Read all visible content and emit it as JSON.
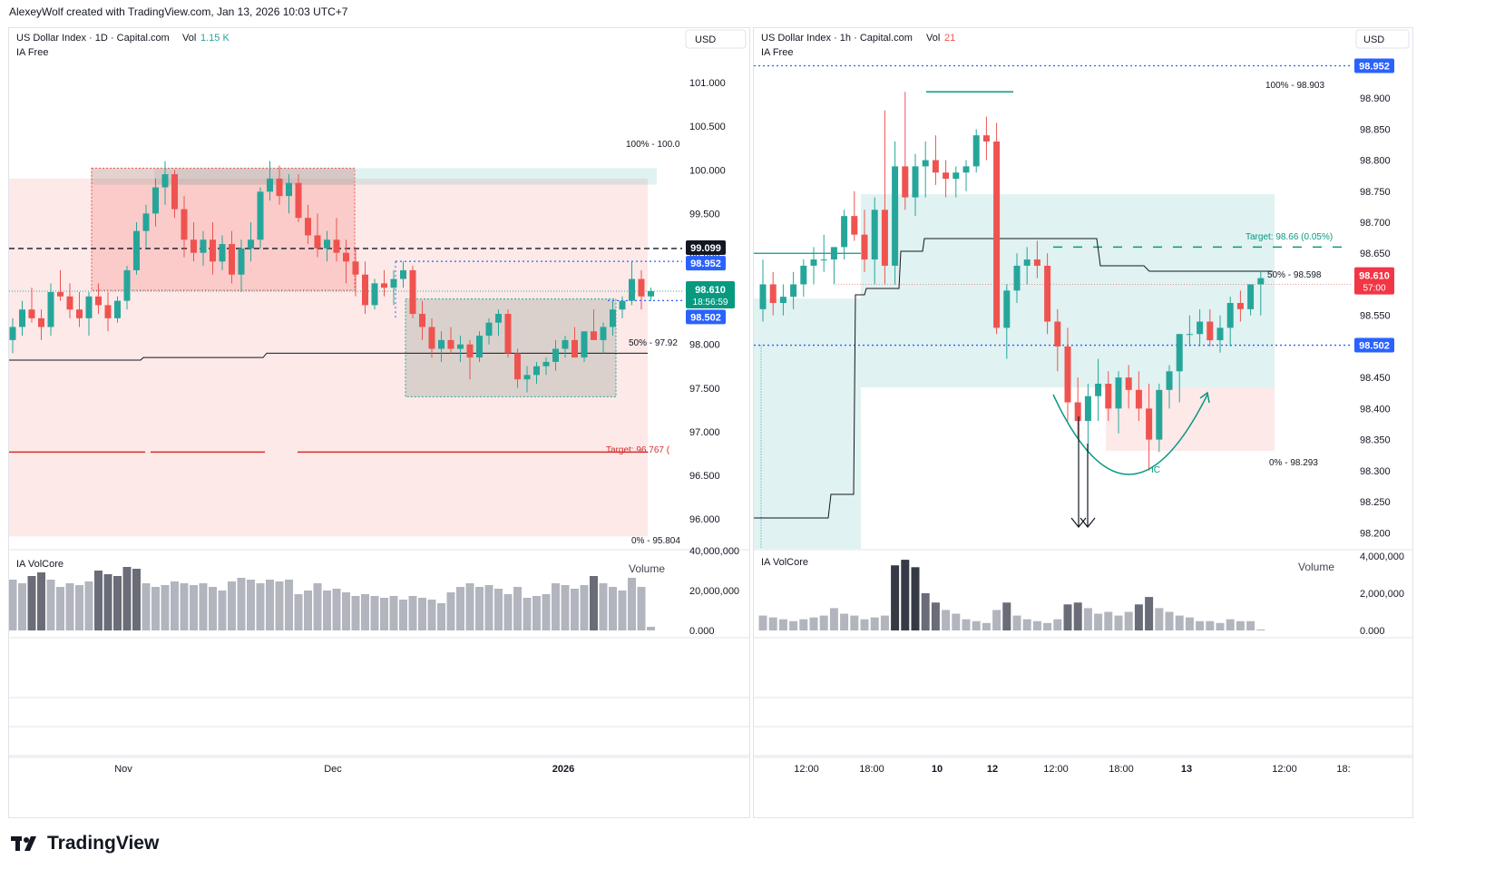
{
  "header": {
    "text": "AlexeyWolf created with TradingView.com, Jan 13, 2026 10:03 UTC+7"
  },
  "footer": {
    "brand": "TradingView"
  },
  "colors": {
    "up": "#26a69a",
    "down": "#ef5350",
    "blue": "#2962ff",
    "zone_red": "#ef5350",
    "zone_green": "#26a69a",
    "volume": "#b2b5be",
    "volume_dark": "#363a45"
  },
  "left": {
    "symbol": "US Dollar Index · 1D · Capital.com",
    "vol_label": "Vol",
    "vol_value": "1.15 K",
    "indicator": "IA Free",
    "currency": "USD",
    "volcore_label": "IA VolCore",
    "volume_label": "Volume",
    "fib_top": "100% - 100.0",
    "fib_mid": "50% - 97.92",
    "fib_bottom": "0% - 95.804",
    "target_label": "Target: 96.767 (",
    "price_tags": {
      "black": "99.099",
      "blue_upper": "98.952",
      "last": "98.610",
      "countdown": "18:56:59",
      "blue_lower": "98.502"
    },
    "y_ticks": [
      "101.000",
      "100.500",
      "100.000",
      "99.500",
      "99.000",
      "98.500",
      "98.000",
      "97.500",
      "97.000",
      "96.500",
      "96.000"
    ],
    "vol_ticks": [
      "40,000,000",
      "20,000,000",
      "0.000"
    ],
    "x_ticks": [
      "Nov",
      "Dec",
      "2026"
    ]
  },
  "right": {
    "symbol": "US Dollar Index · 1h · Capital.com",
    "vol_label": "Vol",
    "vol_value": "21",
    "indicator": "IA Free",
    "currency": "USD",
    "volcore_label": "IA VolCore",
    "volume_label": "Volume",
    "fib_top": "100% - 98.903",
    "fib_mid": "50% - 98.598",
    "fib_bottom": "0% - 98.293",
    "target_label": "Target: 98.66 (0.05%)",
    "ic_label": "IC",
    "price_tags": {
      "blue_top": "98.952",
      "last": "98.610",
      "countdown": "57:00",
      "blue_lower": "98.502"
    },
    "y_ticks": [
      "98.900",
      "98.850",
      "98.800",
      "98.750",
      "98.700",
      "98.650",
      "98.600",
      "98.550",
      "98.500",
      "98.450",
      "98.400",
      "98.350",
      "98.300",
      "98.250",
      "98.200"
    ],
    "vol_ticks": [
      "4,000,000",
      "2,000,000",
      "0.000"
    ],
    "x_ticks": [
      "12:00",
      "18:00",
      "10",
      "12",
      "12:00",
      "18:00",
      "13",
      "12:00",
      "18:"
    ]
  },
  "chart_data": [
    {
      "type": "candlestick",
      "title": "US Dollar Index · 1D · Capital.com",
      "ylim": [
        95.7,
        101.25
      ],
      "levels": {
        "fib_100": 100.0,
        "fib_50": 97.92,
        "fib_0": 95.804,
        "target": 96.767,
        "dashed_black": 99.099,
        "blue_dotted_upper": 98.952,
        "blue_dotted_lower": 98.502,
        "last": 98.61
      },
      "ohlc": [
        [
          98.05,
          98.3,
          97.9,
          98.2
        ],
        [
          98.2,
          98.5,
          98.1,
          98.4
        ],
        [
          98.4,
          98.65,
          98.25,
          98.3
        ],
        [
          98.3,
          98.4,
          98.05,
          98.2
        ],
        [
          98.2,
          98.7,
          98.1,
          98.6
        ],
        [
          98.6,
          98.85,
          98.5,
          98.55
        ],
        [
          98.55,
          98.7,
          98.3,
          98.4
        ],
        [
          98.4,
          98.6,
          98.2,
          98.3
        ],
        [
          98.3,
          98.6,
          98.1,
          98.55
        ],
        [
          98.55,
          98.7,
          98.35,
          98.45
        ],
        [
          98.45,
          98.6,
          98.15,
          98.3
        ],
        [
          98.3,
          98.55,
          98.25,
          98.5
        ],
        [
          98.5,
          98.9,
          98.4,
          98.85
        ],
        [
          98.85,
          99.4,
          98.8,
          99.3
        ],
        [
          99.3,
          99.6,
          99.1,
          99.5
        ],
        [
          99.5,
          99.9,
          99.35,
          99.8
        ],
        [
          99.8,
          100.1,
          99.6,
          99.95
        ],
        [
          99.95,
          100.0,
          99.45,
          99.55
        ],
        [
          99.55,
          99.7,
          99.0,
          99.2
        ],
        [
          99.2,
          99.4,
          98.95,
          99.05
        ],
        [
          99.05,
          99.3,
          98.9,
          99.2
        ],
        [
          99.2,
          99.4,
          98.8,
          98.95
        ],
        [
          98.95,
          99.25,
          98.85,
          99.15
        ],
        [
          99.15,
          99.3,
          98.7,
          98.8
        ],
        [
          98.8,
          99.2,
          98.6,
          99.1
        ],
        [
          99.1,
          99.4,
          98.95,
          99.2
        ],
        [
          99.2,
          99.8,
          99.1,
          99.75
        ],
        [
          99.75,
          100.1,
          99.65,
          99.9
        ],
        [
          99.9,
          100.05,
          99.6,
          99.7
        ],
        [
          99.7,
          99.95,
          99.5,
          99.85
        ],
        [
          99.85,
          99.95,
          99.4,
          99.45
        ],
        [
          99.45,
          99.6,
          99.15,
          99.25
        ],
        [
          99.25,
          99.5,
          99.0,
          99.1
        ],
        [
          99.1,
          99.3,
          98.95,
          99.2
        ],
        [
          99.2,
          99.45,
          98.95,
          99.05
        ],
        [
          99.05,
          99.2,
          98.7,
          98.95
        ],
        [
          98.95,
          99.1,
          98.55,
          98.8
        ],
        [
          98.8,
          98.95,
          98.35,
          98.45
        ],
        [
          98.45,
          98.75,
          98.4,
          98.7
        ],
        [
          98.7,
          98.85,
          98.55,
          98.65
        ],
        [
          98.65,
          98.85,
          98.45,
          98.75
        ],
        [
          98.75,
          98.95,
          98.65,
          98.85
        ],
        [
          98.85,
          98.9,
          98.3,
          98.35
        ],
        [
          98.35,
          98.5,
          98.05,
          98.2
        ],
        [
          98.2,
          98.3,
          97.85,
          97.95
        ],
        [
          97.95,
          98.15,
          97.8,
          98.05
        ],
        [
          98.05,
          98.2,
          97.9,
          97.95
        ],
        [
          97.95,
          98.1,
          97.8,
          98.0
        ],
        [
          98.0,
          98.05,
          97.6,
          97.85
        ],
        [
          97.85,
          98.15,
          97.8,
          98.1
        ],
        [
          98.1,
          98.3,
          98.0,
          98.25
        ],
        [
          98.25,
          98.4,
          98.1,
          98.35
        ],
        [
          98.35,
          98.4,
          97.85,
          97.9
        ],
        [
          97.9,
          97.95,
          97.5,
          97.6
        ],
        [
          97.6,
          97.75,
          97.45,
          97.65
        ],
        [
          97.65,
          97.8,
          97.55,
          97.75
        ],
        [
          97.75,
          97.85,
          97.65,
          97.8
        ],
        [
          97.8,
          98.05,
          97.7,
          97.95
        ],
        [
          97.95,
          98.1,
          97.85,
          98.05
        ],
        [
          98.05,
          98.2,
          97.9,
          97.85
        ],
        [
          97.85,
          98.15,
          97.8,
          98.15
        ],
        [
          98.15,
          98.4,
          98.05,
          98.05
        ],
        [
          98.05,
          98.25,
          97.9,
          98.2
        ],
        [
          98.2,
          98.5,
          98.1,
          98.4
        ],
        [
          98.4,
          98.55,
          98.3,
          98.5
        ],
        [
          98.5,
          98.95,
          98.45,
          98.75
        ],
        [
          98.75,
          98.85,
          98.4,
          98.55
        ],
        [
          98.55,
          98.65,
          98.5,
          98.61
        ]
      ],
      "volume_millions": [
        28,
        26,
        30,
        32,
        28,
        24,
        26,
        25,
        27,
        33,
        31,
        30,
        35,
        34,
        26,
        24,
        25,
        27,
        26,
        25,
        26,
        24,
        22,
        27,
        29,
        28,
        26,
        28,
        27,
        28,
        20,
        22,
        26,
        22,
        23,
        21,
        19,
        20,
        19,
        18,
        19,
        17,
        19,
        18,
        17,
        15,
        21,
        24,
        26,
        24,
        25,
        23,
        20,
        24,
        18,
        19,
        20,
        26,
        25,
        23,
        25,
        30,
        26,
        24,
        22,
        29,
        24,
        2
      ]
    },
    {
      "type": "candlestick",
      "title": "US Dollar Index · 1h · Capital.com",
      "ylim": [
        98.18,
        98.96
      ],
      "levels": {
        "fib_100": 98.903,
        "fib_50": 98.598,
        "fib_0": 98.293,
        "target": 98.66,
        "blue_dotted_top": 98.952,
        "blue_dotted_lower": 98.502,
        "last": 98.61
      },
      "ohlc": [
        [
          98.56,
          98.64,
          98.54,
          98.6
        ],
        [
          98.6,
          98.62,
          98.55,
          98.57
        ],
        [
          98.57,
          98.6,
          98.55,
          98.58
        ],
        [
          98.58,
          98.62,
          98.56,
          98.6
        ],
        [
          98.6,
          98.64,
          98.58,
          98.63
        ],
        [
          98.63,
          98.66,
          98.6,
          98.64
        ],
        [
          98.64,
          98.68,
          98.62,
          98.64
        ],
        [
          98.64,
          98.66,
          98.6,
          98.66
        ],
        [
          98.66,
          98.72,
          98.64,
          98.71
        ],
        [
          98.71,
          98.75,
          98.67,
          98.68
        ],
        [
          98.68,
          98.72,
          98.62,
          98.64
        ],
        [
          98.64,
          98.74,
          98.6,
          98.72
        ],
        [
          98.72,
          98.88,
          98.6,
          98.63
        ],
        [
          98.63,
          98.83,
          98.6,
          98.79
        ],
        [
          98.79,
          98.91,
          98.72,
          98.74
        ],
        [
          98.74,
          98.81,
          98.71,
          98.79
        ],
        [
          98.79,
          98.83,
          98.74,
          98.8
        ],
        [
          98.8,
          98.84,
          98.76,
          98.78
        ],
        [
          98.78,
          98.8,
          98.74,
          98.77
        ],
        [
          98.77,
          98.79,
          98.74,
          98.78
        ],
        [
          98.78,
          98.8,
          98.75,
          98.79
        ],
        [
          98.79,
          98.85,
          98.78,
          98.84
        ],
        [
          98.84,
          98.87,
          98.8,
          98.83
        ],
        [
          98.83,
          98.86,
          98.52,
          98.53
        ],
        [
          98.53,
          98.6,
          98.48,
          98.59
        ],
        [
          98.59,
          98.65,
          98.57,
          98.63
        ],
        [
          98.63,
          98.66,
          98.6,
          98.64
        ],
        [
          98.64,
          98.67,
          98.61,
          98.63
        ],
        [
          98.63,
          98.65,
          98.52,
          98.54
        ],
        [
          98.54,
          98.56,
          98.46,
          98.5
        ],
        [
          98.5,
          98.53,
          98.38,
          98.41
        ],
        [
          98.41,
          98.45,
          98.35,
          98.38
        ],
        [
          98.38,
          98.44,
          98.33,
          98.42
        ],
        [
          98.42,
          98.48,
          98.38,
          98.44
        ],
        [
          98.44,
          98.46,
          98.38,
          98.4
        ],
        [
          98.4,
          98.46,
          98.36,
          98.45
        ],
        [
          98.45,
          98.47,
          98.4,
          98.43
        ],
        [
          98.43,
          98.46,
          98.38,
          98.4
        ],
        [
          98.4,
          98.44,
          98.3,
          98.35
        ],
        [
          98.35,
          98.44,
          98.33,
          98.43
        ],
        [
          98.43,
          98.47,
          98.4,
          98.46
        ],
        [
          98.46,
          98.52,
          98.41,
          98.52
        ],
        [
          98.52,
          98.55,
          98.5,
          98.52
        ],
        [
          98.52,
          98.56,
          98.5,
          98.54
        ],
        [
          98.54,
          98.56,
          98.5,
          98.51
        ],
        [
          98.51,
          98.55,
          98.49,
          98.53
        ],
        [
          98.53,
          98.58,
          98.5,
          98.57
        ],
        [
          98.57,
          98.59,
          98.54,
          98.56
        ],
        [
          98.56,
          98.6,
          98.55,
          98.6
        ],
        [
          98.6,
          98.62,
          98.55,
          98.61
        ]
      ],
      "volume_millions": [
        0.8,
        0.7,
        0.6,
        0.5,
        0.6,
        0.7,
        0.8,
        1.2,
        0.9,
        0.8,
        0.6,
        0.7,
        0.8,
        3.5,
        3.8,
        3.4,
        2.0,
        1.5,
        1.1,
        0.9,
        0.6,
        0.5,
        0.4,
        1.1,
        1.5,
        0.8,
        0.6,
        0.5,
        0.4,
        0.6,
        1.4,
        1.5,
        1.2,
        0.9,
        1.0,
        0.8,
        1.0,
        1.4,
        1.8,
        1.2,
        1.0,
        0.8,
        0.7,
        0.5,
        0.5,
        0.4,
        0.6,
        0.5,
        0.5,
        0.05
      ]
    }
  ]
}
